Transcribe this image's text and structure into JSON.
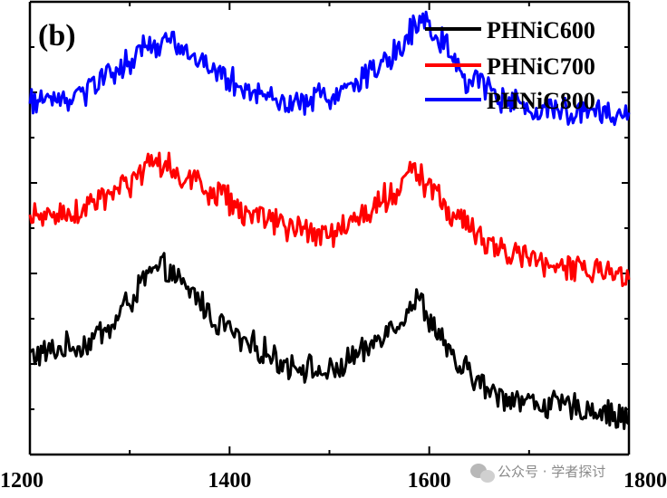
{
  "chart_data": {
    "type": "line",
    "panel_label": "(b)",
    "xlim": [
      1200,
      1800
    ],
    "x_ticks": [
      {
        "value": 1200,
        "label": "1200"
      },
      {
        "value": 1400,
        "label": "1400"
      },
      {
        "value": 1600,
        "label": "1600"
      },
      {
        "value": 1800,
        "label": "1800"
      }
    ],
    "ylim": [
      0,
      1
    ],
    "y_tick_labels_shown": false,
    "legend_position": "top-right",
    "series": [
      {
        "name": "PHNiC600",
        "color": "#000000",
        "points": [
          [
            1200,
            0.22
          ],
          [
            1250,
            0.24
          ],
          [
            1280,
            0.28
          ],
          [
            1300,
            0.34
          ],
          [
            1320,
            0.4
          ],
          [
            1335,
            0.41
          ],
          [
            1360,
            0.36
          ],
          [
            1390,
            0.29
          ],
          [
            1420,
            0.24
          ],
          [
            1460,
            0.2
          ],
          [
            1500,
            0.18
          ],
          [
            1530,
            0.22
          ],
          [
            1560,
            0.28
          ],
          [
            1590,
            0.34
          ],
          [
            1605,
            0.28
          ],
          [
            1630,
            0.19
          ],
          [
            1670,
            0.13
          ],
          [
            1720,
            0.11
          ],
          [
            1760,
            0.1
          ],
          [
            1800,
            0.08
          ]
        ]
      },
      {
        "name": "PHNiC700",
        "color": "#ff0000",
        "points": [
          [
            1200,
            0.52
          ],
          [
            1250,
            0.54
          ],
          [
            1280,
            0.57
          ],
          [
            1300,
            0.6
          ],
          [
            1320,
            0.63
          ],
          [
            1335,
            0.64
          ],
          [
            1360,
            0.61
          ],
          [
            1390,
            0.57
          ],
          [
            1420,
            0.53
          ],
          [
            1460,
            0.5
          ],
          [
            1500,
            0.49
          ],
          [
            1530,
            0.52
          ],
          [
            1560,
            0.57
          ],
          [
            1585,
            0.63
          ],
          [
            1600,
            0.58
          ],
          [
            1630,
            0.52
          ],
          [
            1670,
            0.45
          ],
          [
            1720,
            0.42
          ],
          [
            1760,
            0.41
          ],
          [
            1800,
            0.39
          ]
        ]
      },
      {
        "name": "PHNiC800",
        "color": "#0000ff",
        "points": [
          [
            1200,
            0.78
          ],
          [
            1250,
            0.79
          ],
          [
            1280,
            0.84
          ],
          [
            1300,
            0.87
          ],
          [
            1320,
            0.9
          ],
          [
            1340,
            0.91
          ],
          [
            1360,
            0.88
          ],
          [
            1390,
            0.84
          ],
          [
            1420,
            0.8
          ],
          [
            1460,
            0.78
          ],
          [
            1500,
            0.79
          ],
          [
            1530,
            0.83
          ],
          [
            1560,
            0.88
          ],
          [
            1595,
            0.96
          ],
          [
            1610,
            0.92
          ],
          [
            1640,
            0.83
          ],
          [
            1680,
            0.78
          ],
          [
            1720,
            0.76
          ],
          [
            1760,
            0.76
          ],
          [
            1800,
            0.75
          ]
        ]
      }
    ]
  },
  "watermark": {
    "text": "公众号 · 学者探讨",
    "icon": "wechat-icon"
  }
}
